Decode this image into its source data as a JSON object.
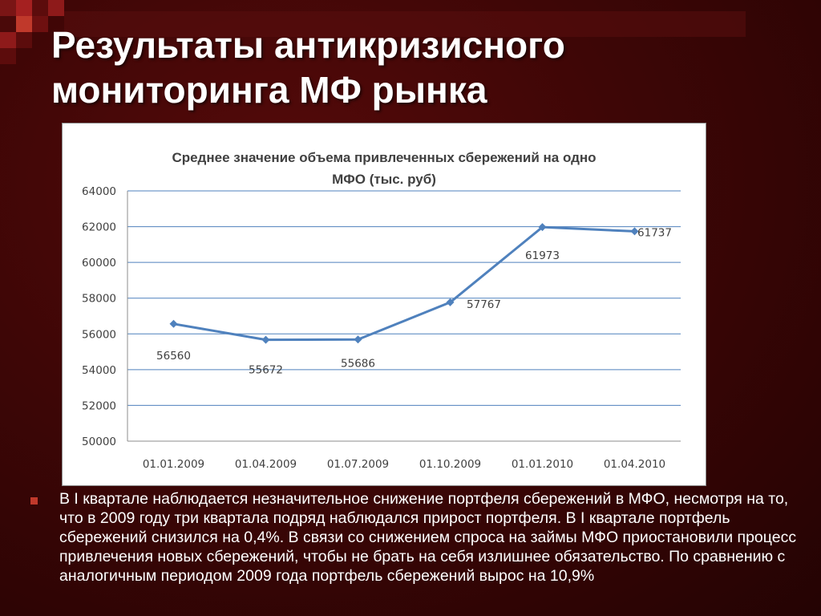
{
  "slide": {
    "title": "Результаты антикризисного мониторинга МФ рынка",
    "bullet_text": "В I квартале наблюдается незначительное снижение портфеля сбережений в МФО, несмотря на то, что в 2009 году три квартала подряд наблюдался прирост портфеля. В I квартале портфель сбережений снизился на 0,4%. В связи со снижением спроса на займы МФО приостановили процесс привлечения новых сбережений, чтобы не брать на себя излишнее обязательство. По сравнению с аналогичным периодом 2009 года портфель сбережений вырос на 10,9%",
    "bullet_icon": "square-bullet-icon"
  },
  "colors": {
    "background": "#3a0606",
    "accent": "#c0392b",
    "line": "#4f81bd",
    "grid": "#4f81bd"
  },
  "chart_data": {
    "type": "line",
    "title_lines": [
      "Среднее значение объема привлеченных сбережений на одно",
      "МФО (тыс. руб)"
    ],
    "categories": [
      "01.01.2009",
      "01.04.2009",
      "01.07.2009",
      "01.10.2009",
      "01.01.2010",
      "01.04.2010"
    ],
    "series": [
      {
        "values": [
          56560,
          55672,
          55686,
          57767,
          61973,
          61737
        ]
      }
    ],
    "data_labels": [
      "56560",
      "55672",
      "55686",
      "57767",
      "61973",
      "61737"
    ],
    "yticks": [
      "50000",
      "52000",
      "54000",
      "56000",
      "58000",
      "60000",
      "62000",
      "64000"
    ],
    "ylim": [
      50000,
      64000
    ],
    "grid": true,
    "legend": false
  }
}
